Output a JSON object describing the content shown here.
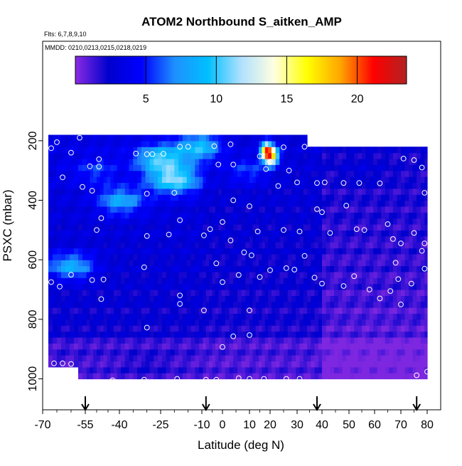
{
  "chart_data": {
    "type": "heatmap",
    "title": "ATOM2 Northbound S_aitken_AMP",
    "flights_note": "Flts: 6,7,8,9,10",
    "dates_note": "MMDD: 0210,0213,0215,0218,0219",
    "xlabel": "Latitude (deg N)",
    "ylabel": "PSXC (mbar)",
    "xlim": [
      -70,
      80
    ],
    "ylim": [
      1000,
      0
    ],
    "x_ticks": [
      -70,
      -55,
      -40,
      -25,
      -10,
      0,
      10,
      20,
      30,
      40,
      50,
      60,
      70,
      80
    ],
    "y_ticks": [
      200,
      400,
      600,
      800,
      1000
    ],
    "colorbar": {
      "min": 0,
      "max": 23.5,
      "ticks": [
        5,
        10,
        15,
        20
      ],
      "colors": [
        "#8a2be2",
        "#0000cd",
        "#0000ff",
        "#1e90ff",
        "#00bfff",
        "#b0e0ff",
        "#ffffe0",
        "#ffff00",
        "#ffa500",
        "#ff0000",
        "#b22222"
      ]
    },
    "arrows_lat": [
      -55,
      -8,
      38,
      76
    ],
    "data_extent": {
      "lat_min": -68,
      "lat_max": 80,
      "top_mbar_south": 175,
      "top_mbar_north": 215,
      "north_top_lat": 33
    },
    "features": [
      {
        "lat": -50,
        "p": 300,
        "value": 6
      },
      {
        "lat": -25,
        "p": 260,
        "value": 11
      },
      {
        "lat": -20,
        "p": 330,
        "value": 12
      },
      {
        "lat": -10,
        "p": 220,
        "value": 10
      },
      {
        "lat": -40,
        "p": 400,
        "value": 9
      },
      {
        "lat": -60,
        "p": 620,
        "value": 9
      },
      {
        "lat": 20,
        "p": 250,
        "value": 19
      },
      {
        "lat": 18,
        "p": 230,
        "value": 15
      },
      {
        "lat": 10,
        "p": 300,
        "value": 6
      },
      {
        "lat": 55,
        "p": 300,
        "value": 3
      },
      {
        "lat": 60,
        "p": 800,
        "value": 1
      },
      {
        "lat": -30,
        "p": 950,
        "value": 2
      }
    ],
    "sample_points": [
      [
        -57,
        190
      ],
      [
        -65,
        205
      ],
      [
        -67,
        225
      ],
      [
        -60,
        240
      ],
      [
        -49,
        262
      ],
      [
        -34,
        243
      ],
      [
        -30,
        245
      ],
      [
        -28,
        245
      ],
      [
        -24,
        244
      ],
      [
        -18,
        220
      ],
      [
        -15,
        220
      ],
      [
        -4,
        218
      ],
      [
        3,
        212
      ],
      [
        15,
        252
      ],
      [
        20,
        270
      ],
      [
        25,
        222
      ],
      [
        33,
        220
      ],
      [
        40,
        208
      ],
      [
        -53,
        286
      ],
      [
        -49,
        287
      ],
      [
        -63,
        323
      ],
      [
        -2,
        280
      ],
      [
        4,
        280
      ],
      [
        18,
        295
      ],
      [
        27,
        300
      ],
      [
        38,
        342
      ],
      [
        41,
        340
      ],
      [
        48,
        342
      ],
      [
        54,
        342
      ],
      [
        62,
        343
      ],
      [
        71,
        260
      ],
      [
        75,
        265
      ],
      [
        78,
        290
      ],
      [
        -52,
        368
      ],
      [
        -30,
        378
      ],
      [
        -20,
        375
      ],
      [
        4,
        400
      ],
      [
        10,
        420
      ],
      [
        23,
        352
      ],
      [
        30,
        340
      ],
      [
        38,
        430
      ],
      [
        40,
        440
      ],
      [
        49,
        418
      ],
      [
        -56,
        355
      ],
      [
        -69,
        405
      ],
      [
        79,
        375
      ],
      [
        -48,
        460
      ],
      [
        -50,
        500
      ],
      [
        -30,
        520
      ],
      [
        -22,
        515
      ],
      [
        -18,
        467
      ],
      [
        -9,
        518
      ],
      [
        -6,
        497
      ],
      [
        0,
        473
      ],
      [
        3,
        535
      ],
      [
        8,
        575
      ],
      [
        11,
        585
      ],
      [
        14,
        505
      ],
      [
        25,
        500
      ],
      [
        31,
        505
      ],
      [
        33,
        587
      ],
      [
        43,
        510
      ],
      [
        53,
        497
      ],
      [
        56,
        500
      ],
      [
        65,
        480
      ],
      [
        67,
        530
      ],
      [
        70,
        545
      ],
      [
        75,
        510
      ],
      [
        79,
        545
      ],
      [
        78,
        570
      ],
      [
        -52,
        668
      ],
      [
        -47,
        666
      ],
      [
        -60,
        650
      ],
      [
        -64,
        690
      ],
      [
        -67,
        675
      ],
      [
        -31,
        625
      ],
      [
        -18,
        720
      ],
      [
        -18,
        748
      ],
      [
        -9,
        770
      ],
      [
        -3,
        612
      ],
      [
        0,
        675
      ],
      [
        6,
        651
      ],
      [
        10,
        770
      ],
      [
        15,
        658
      ],
      [
        20,
        635
      ],
      [
        26,
        628
      ],
      [
        29,
        633
      ],
      [
        37,
        660
      ],
      [
        40,
        680
      ],
      [
        48,
        688
      ],
      [
        52,
        655
      ],
      [
        58,
        700
      ],
      [
        62,
        730
      ],
      [
        66,
        705
      ],
      [
        68,
        610
      ],
      [
        69,
        665
      ],
      [
        70,
        750
      ],
      [
        74,
        680
      ],
      [
        79,
        630
      ],
      [
        -48,
        732
      ],
      [
        -30,
        828
      ],
      [
        0,
        893
      ],
      [
        4,
        857
      ],
      [
        10,
        853
      ],
      [
        -66,
        948
      ],
      [
        -63,
        948
      ],
      [
        -60,
        950
      ],
      [
        -43,
        1005
      ],
      [
        -31,
        1003
      ],
      [
        -19,
        1000
      ],
      [
        -8,
        1003
      ],
      [
        -3,
        1003
      ],
      [
        6,
        998
      ],
      [
        10,
        1000
      ],
      [
        17,
        1000
      ],
      [
        26,
        1000
      ],
      [
        31,
        1000
      ],
      [
        76,
        988
      ],
      [
        80,
        976
      ]
    ]
  }
}
